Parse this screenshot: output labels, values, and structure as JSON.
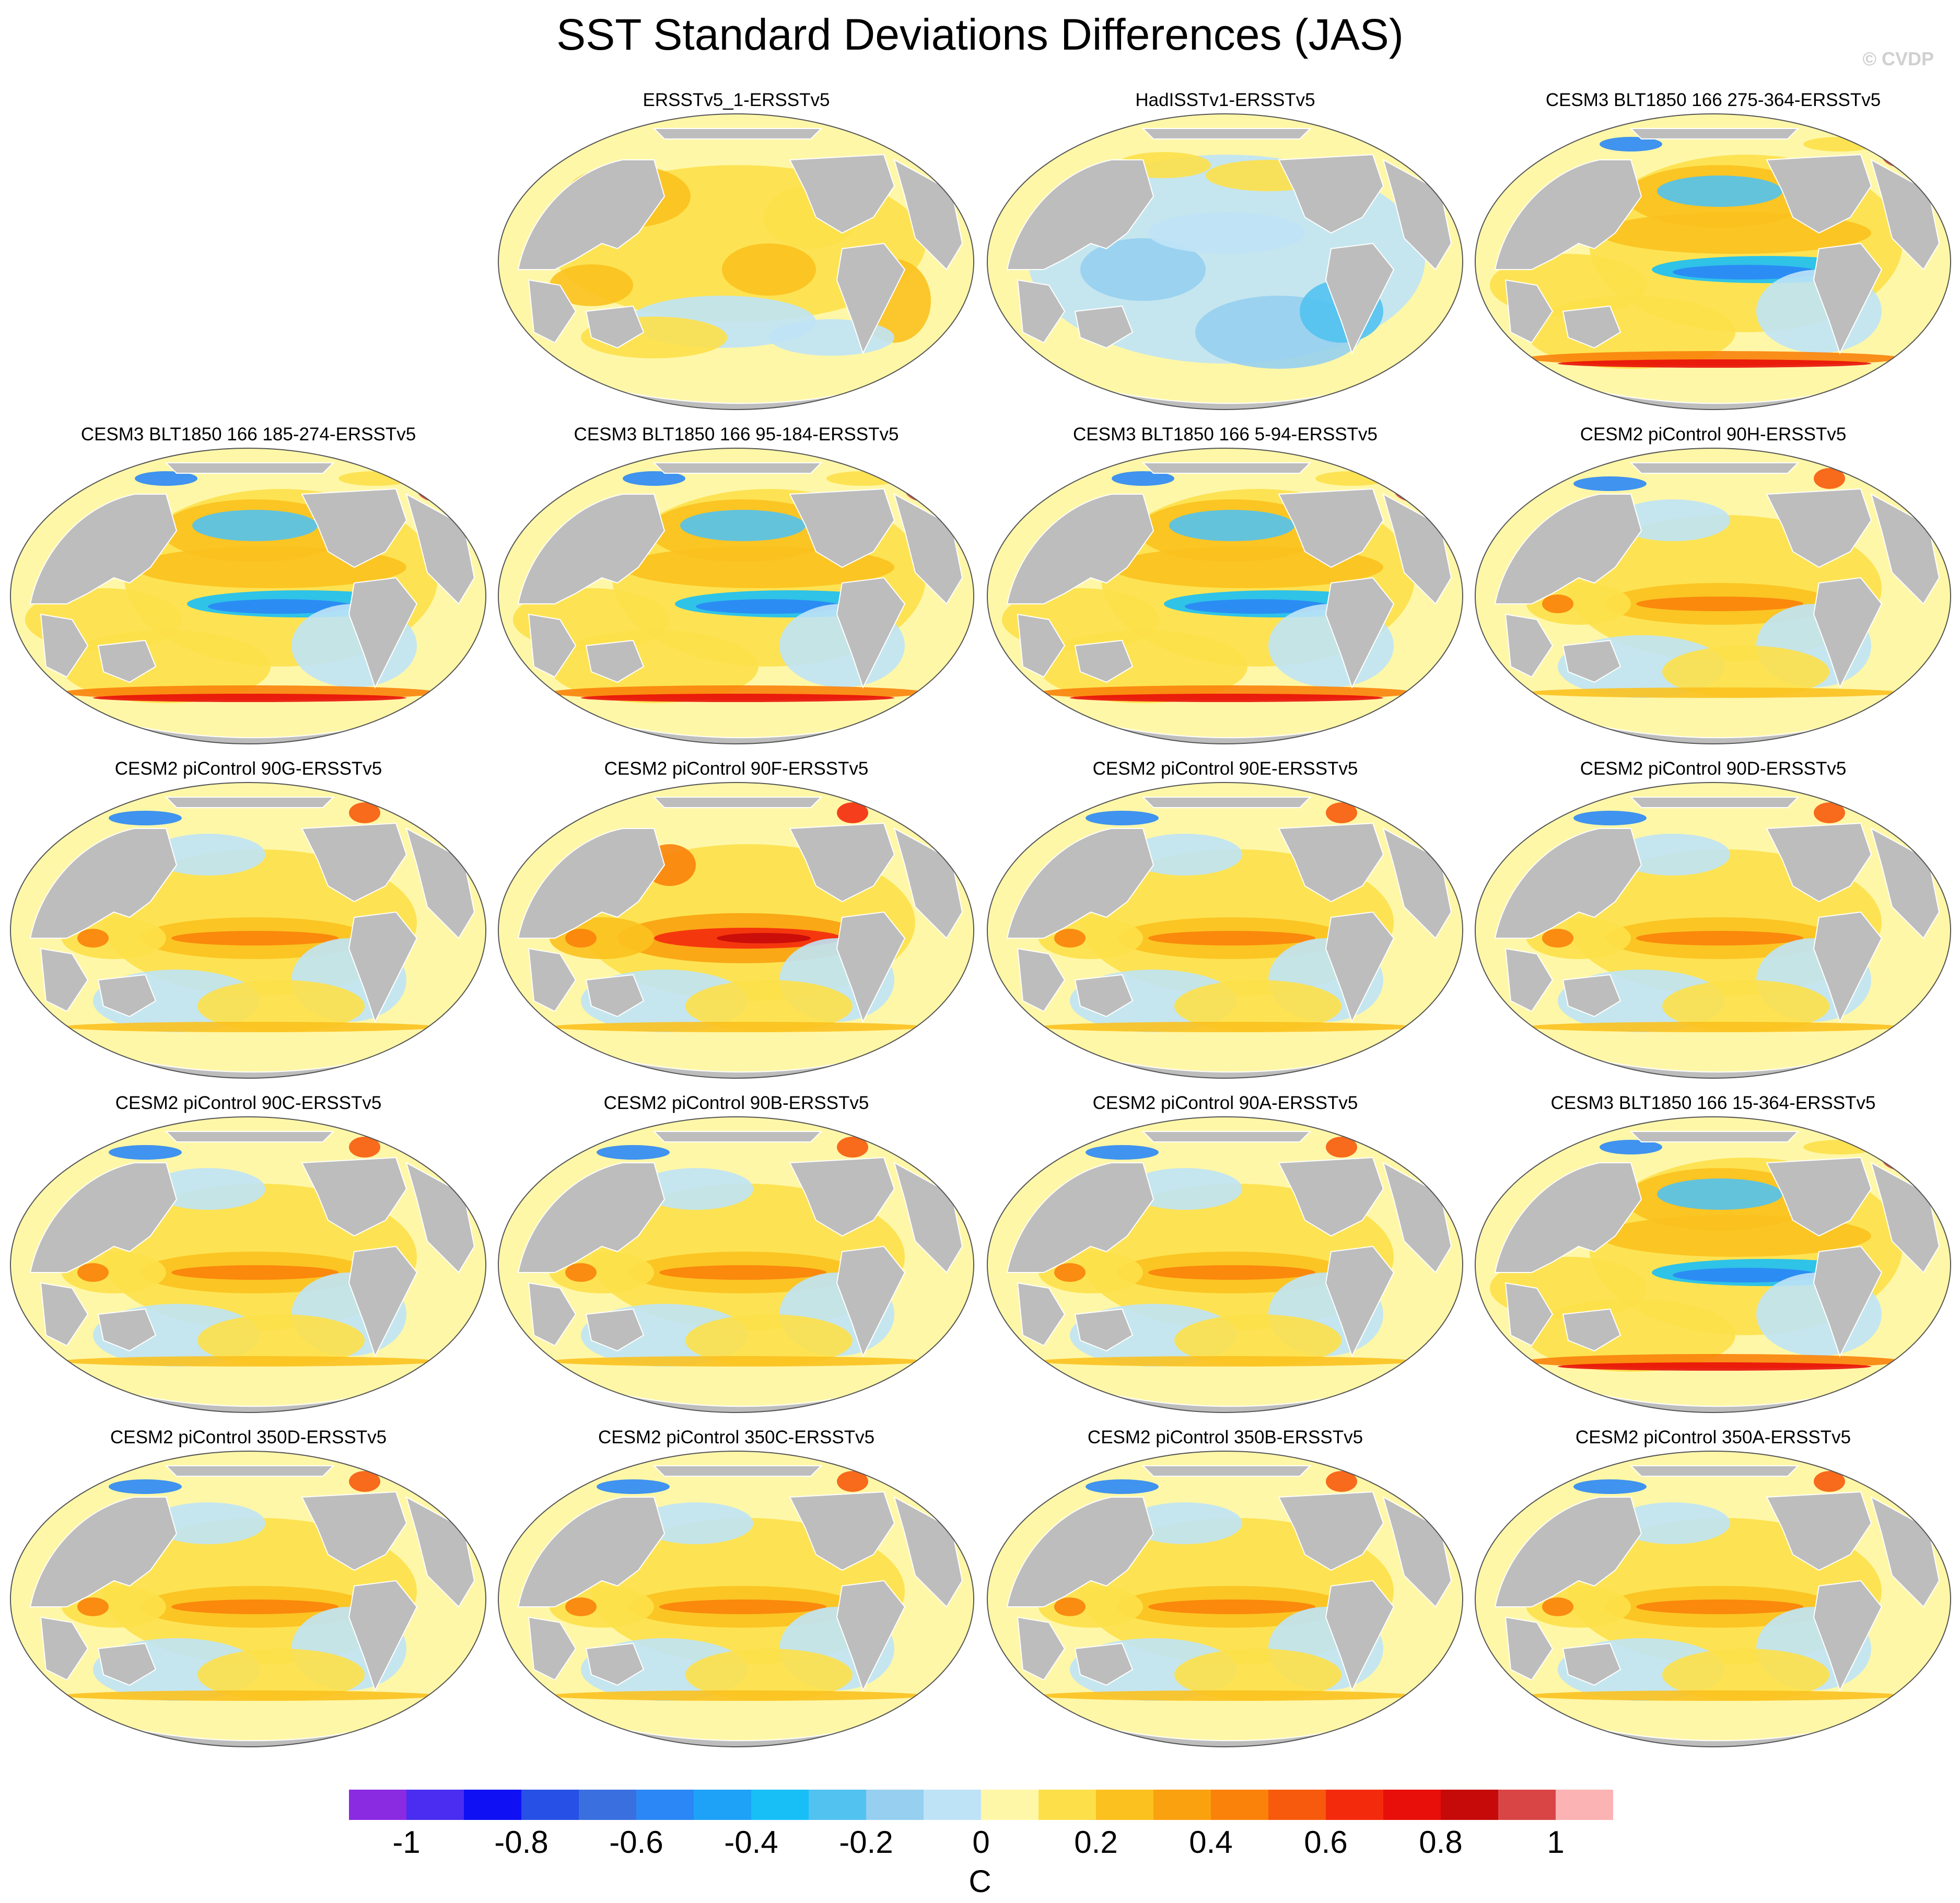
{
  "title": "SST Standard Deviations Differences (JAS)",
  "watermark": "© CVDP",
  "chart_data": {
    "type": "heatmap",
    "title": "SST Standard Deviations Differences (JAS)",
    "projection": "global map (Robinson-like), Pacific-centered",
    "colorbar": {
      "label": "C",
      "ticks": [
        "-1",
        "-0.8",
        "-0.6",
        "-0.4",
        "-0.2",
        "0",
        "0.2",
        "0.4",
        "0.6",
        "0.8",
        "1"
      ],
      "tick_values": [
        -1,
        -0.8,
        -0.6,
        -0.4,
        -0.2,
        0,
        0.2,
        0.4,
        0.6,
        0.8,
        1
      ],
      "colors": [
        "#8a2be2",
        "#4a2df0",
        "#1010f5",
        "#2650e6",
        "#3a6fe0",
        "#2b87f5",
        "#1ea2f7",
        "#18bff7",
        "#52c2f0",
        "#96cff0",
        "#bfe3f6",
        "#fff7a8",
        "#fde049",
        "#fbc11f",
        "#faa10f",
        "#fa820a",
        "#f75a0c",
        "#f42a0c",
        "#e80f0a",
        "#c60a0a",
        "#d94545",
        "#fbb3b3"
      ]
    },
    "panels": [
      {
        "title": "ERSSTv5_1-ERSSTv5",
        "pattern": "obs1"
      },
      {
        "title": "HadISSTv1-ERSSTv5",
        "pattern": "obs2"
      },
      {
        "title": "CESM3 BLT1850 166 275-364-ERSSTv5",
        "pattern": "cesm3"
      },
      {
        "title": "CESM3 BLT1850 166 185-274-ERSSTv5",
        "pattern": "cesm3"
      },
      {
        "title": "CESM3 BLT1850 166 95-184-ERSSTv5",
        "pattern": "cesm3"
      },
      {
        "title": "CESM3 BLT1850 166 5-94-ERSSTv5",
        "pattern": "cesm3"
      },
      {
        "title": "CESM2 piControl 90H-ERSSTv5",
        "pattern": "cesm2"
      },
      {
        "title": "CESM2 piControl 90G-ERSSTv5",
        "pattern": "cesm2"
      },
      {
        "title": "CESM2 piControl 90F-ERSSTv5",
        "pattern": "cesm2strong"
      },
      {
        "title": "CESM2 piControl 90E-ERSSTv5",
        "pattern": "cesm2"
      },
      {
        "title": "CESM2 piControl 90D-ERSSTv5",
        "pattern": "cesm2"
      },
      {
        "title": "CESM2 piControl 90C-ERSSTv5",
        "pattern": "cesm2"
      },
      {
        "title": "CESM2 piControl 90B-ERSSTv5",
        "pattern": "cesm2"
      },
      {
        "title": "CESM2 piControl 90A-ERSSTv5",
        "pattern": "cesm2"
      },
      {
        "title": "CESM3 BLT1850 166 15-364-ERSSTv5",
        "pattern": "cesm3"
      },
      {
        "title": "CESM2 piControl 350D-ERSSTv5",
        "pattern": "cesm2"
      },
      {
        "title": "CESM2 piControl 350C-ERSSTv5",
        "pattern": "cesm2"
      },
      {
        "title": "CESM2 piControl 350B-ERSSTv5",
        "pattern": "cesm2"
      },
      {
        "title": "CESM2 piControl 350A-ERSSTv5",
        "pattern": "cesm2"
      }
    ]
  }
}
